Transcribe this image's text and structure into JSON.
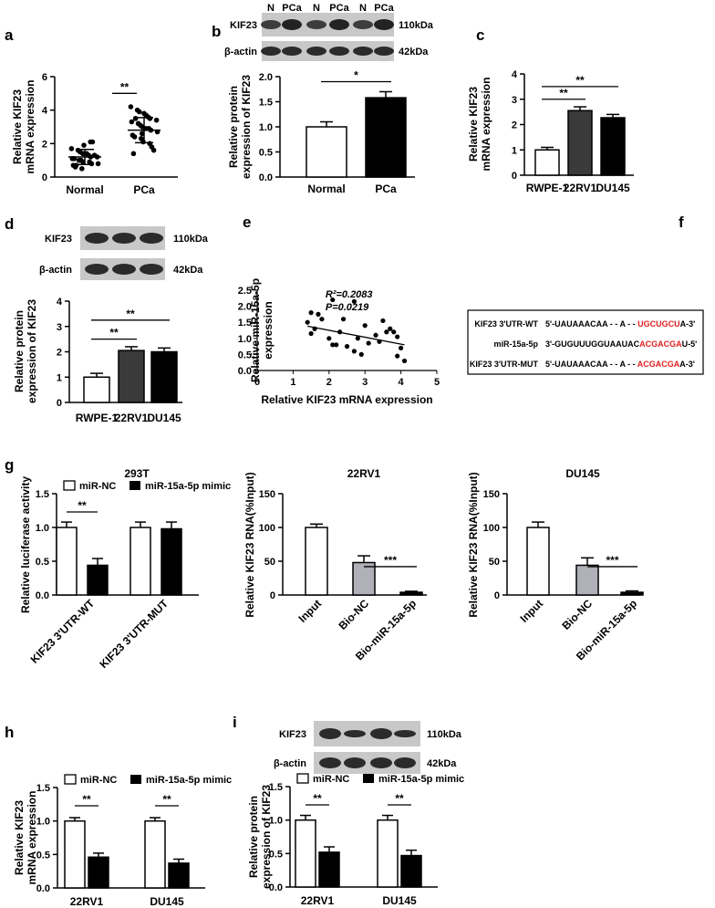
{
  "panel_labels": [
    "a",
    "b",
    "c",
    "d",
    "e",
    "f",
    "g",
    "h",
    "i"
  ],
  "colors": {
    "white_bar": "#ffffff",
    "black_bar": "#000000",
    "dark_gray_bar": "#3a3a3a",
    "light_gray_bar": "#b0b0b8",
    "highlight": "#e02020"
  },
  "blots": {
    "b": {
      "lanes": [
        "N",
        "PCa",
        "N",
        "PCa",
        "N",
        "PCa"
      ],
      "rows": [
        {
          "label": "KIF23",
          "kda": "110kDa"
        },
        {
          "label": "β-actin",
          "kda": "42kDa"
        }
      ]
    },
    "d": {
      "rows": [
        {
          "label": "KIF23",
          "kda": "110kDa"
        },
        {
          "label": "β-actin",
          "kda": "42kDa"
        }
      ]
    },
    "i": {
      "rows": [
        {
          "label": "KIF23",
          "kda": "110kDa"
        },
        {
          "label": "β-actin",
          "kda": "42kDa"
        }
      ]
    }
  },
  "sequences": {
    "rows": [
      {
        "label": "KIF23 3'UTR-WT",
        "seq": "5'-UAUAAACAA - - A - - ",
        "highlight": "UGCUGCU",
        "tail": "A-3'"
      },
      {
        "label": "miR-15a-5p",
        "seq": "3'-GUGUUUGGUAAUAC",
        "highlight": "ACGACGA",
        "tail": "U-5'"
      },
      {
        "label": "KIF23 3'UTR-MUT",
        "seq": "5'-UAUAAACAA - - A - - ",
        "highlight": "ACGACGA",
        "tail": "A-3'"
      }
    ]
  },
  "chart_data": [
    {
      "panel": "a",
      "type": "scatter",
      "ylabel": "Relative KIF23\nmRNA expression",
      "ylim": [
        0,
        6
      ],
      "yticks": [
        0,
        2,
        4,
        6
      ],
      "categories": [
        "Normal",
        "PCa"
      ],
      "points": [
        [
          1.7,
          1.6,
          1.5,
          1.4,
          1.3,
          1.2,
          1.2,
          1.1,
          1.0,
          1.0,
          0.9,
          0.9,
          0.8,
          0.8,
          0.7,
          0.6,
          0.5,
          1.9,
          2.1,
          2.1,
          1.3,
          1.1,
          0.7,
          1.4
        ],
        [
          4.2,
          4.0,
          3.9,
          3.7,
          3.6,
          3.5,
          3.4,
          3.3,
          3.2,
          3.1,
          3.0,
          2.9,
          2.8,
          2.7,
          2.5,
          2.4,
          2.3,
          2.1,
          2.0,
          1.8,
          1.6,
          1.4,
          3.5,
          2.6,
          3.8,
          2.9
        ]
      ],
      "means": [
        1.2,
        2.8
      ],
      "sd": [
        0.45,
        0.75
      ],
      "significance": [
        {
          "from": 0,
          "to": 1,
          "label": "**"
        }
      ]
    },
    {
      "panel": "b",
      "type": "bar",
      "ylabel": "Relative protein\nexpression of KIF23",
      "ylim": [
        0,
        2.0
      ],
      "yticks": [
        "0.0",
        "0.5",
        "1.0",
        "1.5",
        "2.0"
      ],
      "categories": [
        "Normal",
        "PCa"
      ],
      "values": [
        1.0,
        1.58
      ],
      "errors": [
        0.1,
        0.12
      ],
      "significance": [
        {
          "from": 0,
          "to": 1,
          "label": "*"
        }
      ]
    },
    {
      "panel": "c",
      "type": "bar",
      "ylabel": "Relative KIF23\nmRNA expression",
      "ylim": [
        0,
        4
      ],
      "yticks": [
        "0",
        "1",
        "2",
        "3",
        "4"
      ],
      "categories": [
        "RWPE-1",
        "22RV1",
        "DU145"
      ],
      "values": [
        1.0,
        2.55,
        2.27
      ],
      "errors": [
        0.1,
        0.15,
        0.13
      ],
      "significance": [
        {
          "from": 0,
          "to": 1,
          "label": "**"
        },
        {
          "from": 0,
          "to": 2,
          "label": "**"
        }
      ]
    },
    {
      "panel": "d",
      "type": "bar",
      "ylabel": "Relative protein\nexpression of KIF23",
      "ylim": [
        0,
        4
      ],
      "yticks": [
        "0",
        "1",
        "2",
        "3",
        "4"
      ],
      "categories": [
        "RWPE-1",
        "22RV1",
        "DU145"
      ],
      "values": [
        1.0,
        2.05,
        2.0
      ],
      "errors": [
        0.15,
        0.15,
        0.15
      ],
      "significance": [
        {
          "from": 0,
          "to": 1,
          "label": "**"
        },
        {
          "from": 0,
          "to": 2,
          "label": "**"
        }
      ]
    },
    {
      "panel": "e",
      "type": "scatter",
      "xlabel": "Relative KIF23 mRNA expression",
      "ylabel": "Relative miR-15a-5p\nexpression",
      "xlim": [
        0,
        5
      ],
      "ylim": [
        0,
        2.5
      ],
      "xticks": [
        "0",
        "1",
        "2",
        "3",
        "4",
        "5"
      ],
      "yticks": [
        "0.0",
        "0.5",
        "1.0",
        "1.5",
        "2.0",
        "2.5"
      ],
      "annotations": [
        "R²=0.2083",
        "P=0.0219"
      ],
      "x": [
        1.4,
        1.5,
        1.6,
        1.7,
        1.5,
        1.8,
        2.0,
        2.1,
        2.3,
        2.1,
        2.4,
        2.7,
        2.8,
        2.5,
        2.9,
        3.0,
        3.1,
        3.3,
        3.4,
        3.5,
        3.7,
        3.8,
        3.9,
        4.0,
        4.1,
        2.7,
        3.6,
        3.9,
        2.2
      ],
      "y": [
        1.5,
        1.8,
        1.3,
        1.75,
        1.15,
        1.6,
        1.0,
        0.8,
        1.2,
        2.2,
        1.6,
        2.15,
        1.0,
        0.75,
        0.5,
        1.4,
        0.85,
        1.1,
        0.9,
        1.55,
        1.3,
        1.2,
        0.45,
        0.7,
        0.3,
        0.6,
        1.2,
        1.05,
        0.8
      ],
      "fit": [
        [
          1.4,
          1.38
        ],
        [
          4.1,
          0.8
        ]
      ]
    },
    {
      "panel": "g1",
      "type": "bar",
      "title": "293T",
      "ylabel": "Relative luciferase activity",
      "ylim": [
        0,
        1.5
      ],
      "yticks": [
        "0.0",
        "0.5",
        "1.0",
        "1.5"
      ],
      "categories": [
        "KIF23 3'UTR-WT",
        "KIF23 3'UTR-MUT"
      ],
      "series": [
        {
          "name": "miR-NC",
          "values": [
            1.0,
            1.0
          ],
          "errors": [
            0.08,
            0.08
          ]
        },
        {
          "name": "miR-15a-5p mimic",
          "values": [
            0.44,
            0.98
          ],
          "errors": [
            0.1,
            0.1
          ]
        }
      ],
      "significance": [
        {
          "group": 0,
          "label": "**"
        }
      ],
      "legend": "top"
    },
    {
      "panel": "g2",
      "type": "bar",
      "title": "22RV1",
      "ylabel": "Relative KIF23 RNA(%Input)",
      "ylim": [
        0,
        150
      ],
      "yticks": [
        "0",
        "50",
        "100",
        "150"
      ],
      "categories": [
        "Input",
        "Bio-NC",
        "Bio-miR-15a-5p"
      ],
      "values": [
        100,
        48,
        4
      ],
      "errors": [
        5,
        10,
        1.5
      ],
      "significance": [
        {
          "from": 1,
          "to": 2,
          "label": "***"
        }
      ]
    },
    {
      "panel": "g3",
      "type": "bar",
      "title": "DU145",
      "ylabel": "Relative KIF23 RNA(%Input)",
      "ylim": [
        0,
        150
      ],
      "yticks": [
        "0",
        "50",
        "100",
        "150"
      ],
      "categories": [
        "Input",
        "Bio-NC",
        "Bio-miR-15a-5p"
      ],
      "values": [
        100,
        44,
        4
      ],
      "errors": [
        8,
        11,
        2
      ],
      "significance": [
        {
          "from": 1,
          "to": 2,
          "label": "***"
        }
      ]
    },
    {
      "panel": "h",
      "type": "bar",
      "ylabel": "Relative KIF23\nmRNA expression",
      "ylim": [
        0,
        1.5
      ],
      "yticks": [
        "0.0",
        "0.5",
        "1.0",
        "1.5"
      ],
      "categories": [
        "22RV1",
        "DU145"
      ],
      "series": [
        {
          "name": "miR-NC",
          "values": [
            1.0,
            1.0
          ],
          "errors": [
            0.05,
            0.05
          ]
        },
        {
          "name": "miR-15a-5p mimic",
          "values": [
            0.46,
            0.37
          ],
          "errors": [
            0.06,
            0.06
          ]
        }
      ],
      "significance": [
        {
          "group": 0,
          "label": "**"
        },
        {
          "group": 1,
          "label": "**"
        }
      ],
      "legend": "top"
    },
    {
      "panel": "i",
      "type": "bar",
      "ylabel": "Relative protein\nexpression of KIF23",
      "ylim": [
        0,
        1.5
      ],
      "yticks": [
        "0.0",
        "0.5",
        "1.0",
        "1.5"
      ],
      "categories": [
        "22RV1",
        "DU145"
      ],
      "series": [
        {
          "name": "miR-NC",
          "values": [
            1.0,
            1.0
          ],
          "errors": [
            0.07,
            0.07
          ]
        },
        {
          "name": "miR-15a-5p mimic",
          "values": [
            0.52,
            0.47
          ],
          "errors": [
            0.08,
            0.08
          ]
        }
      ],
      "significance": [
        {
          "group": 0,
          "label": "**"
        },
        {
          "group": 1,
          "label": "**"
        }
      ],
      "legend": "top"
    }
  ]
}
